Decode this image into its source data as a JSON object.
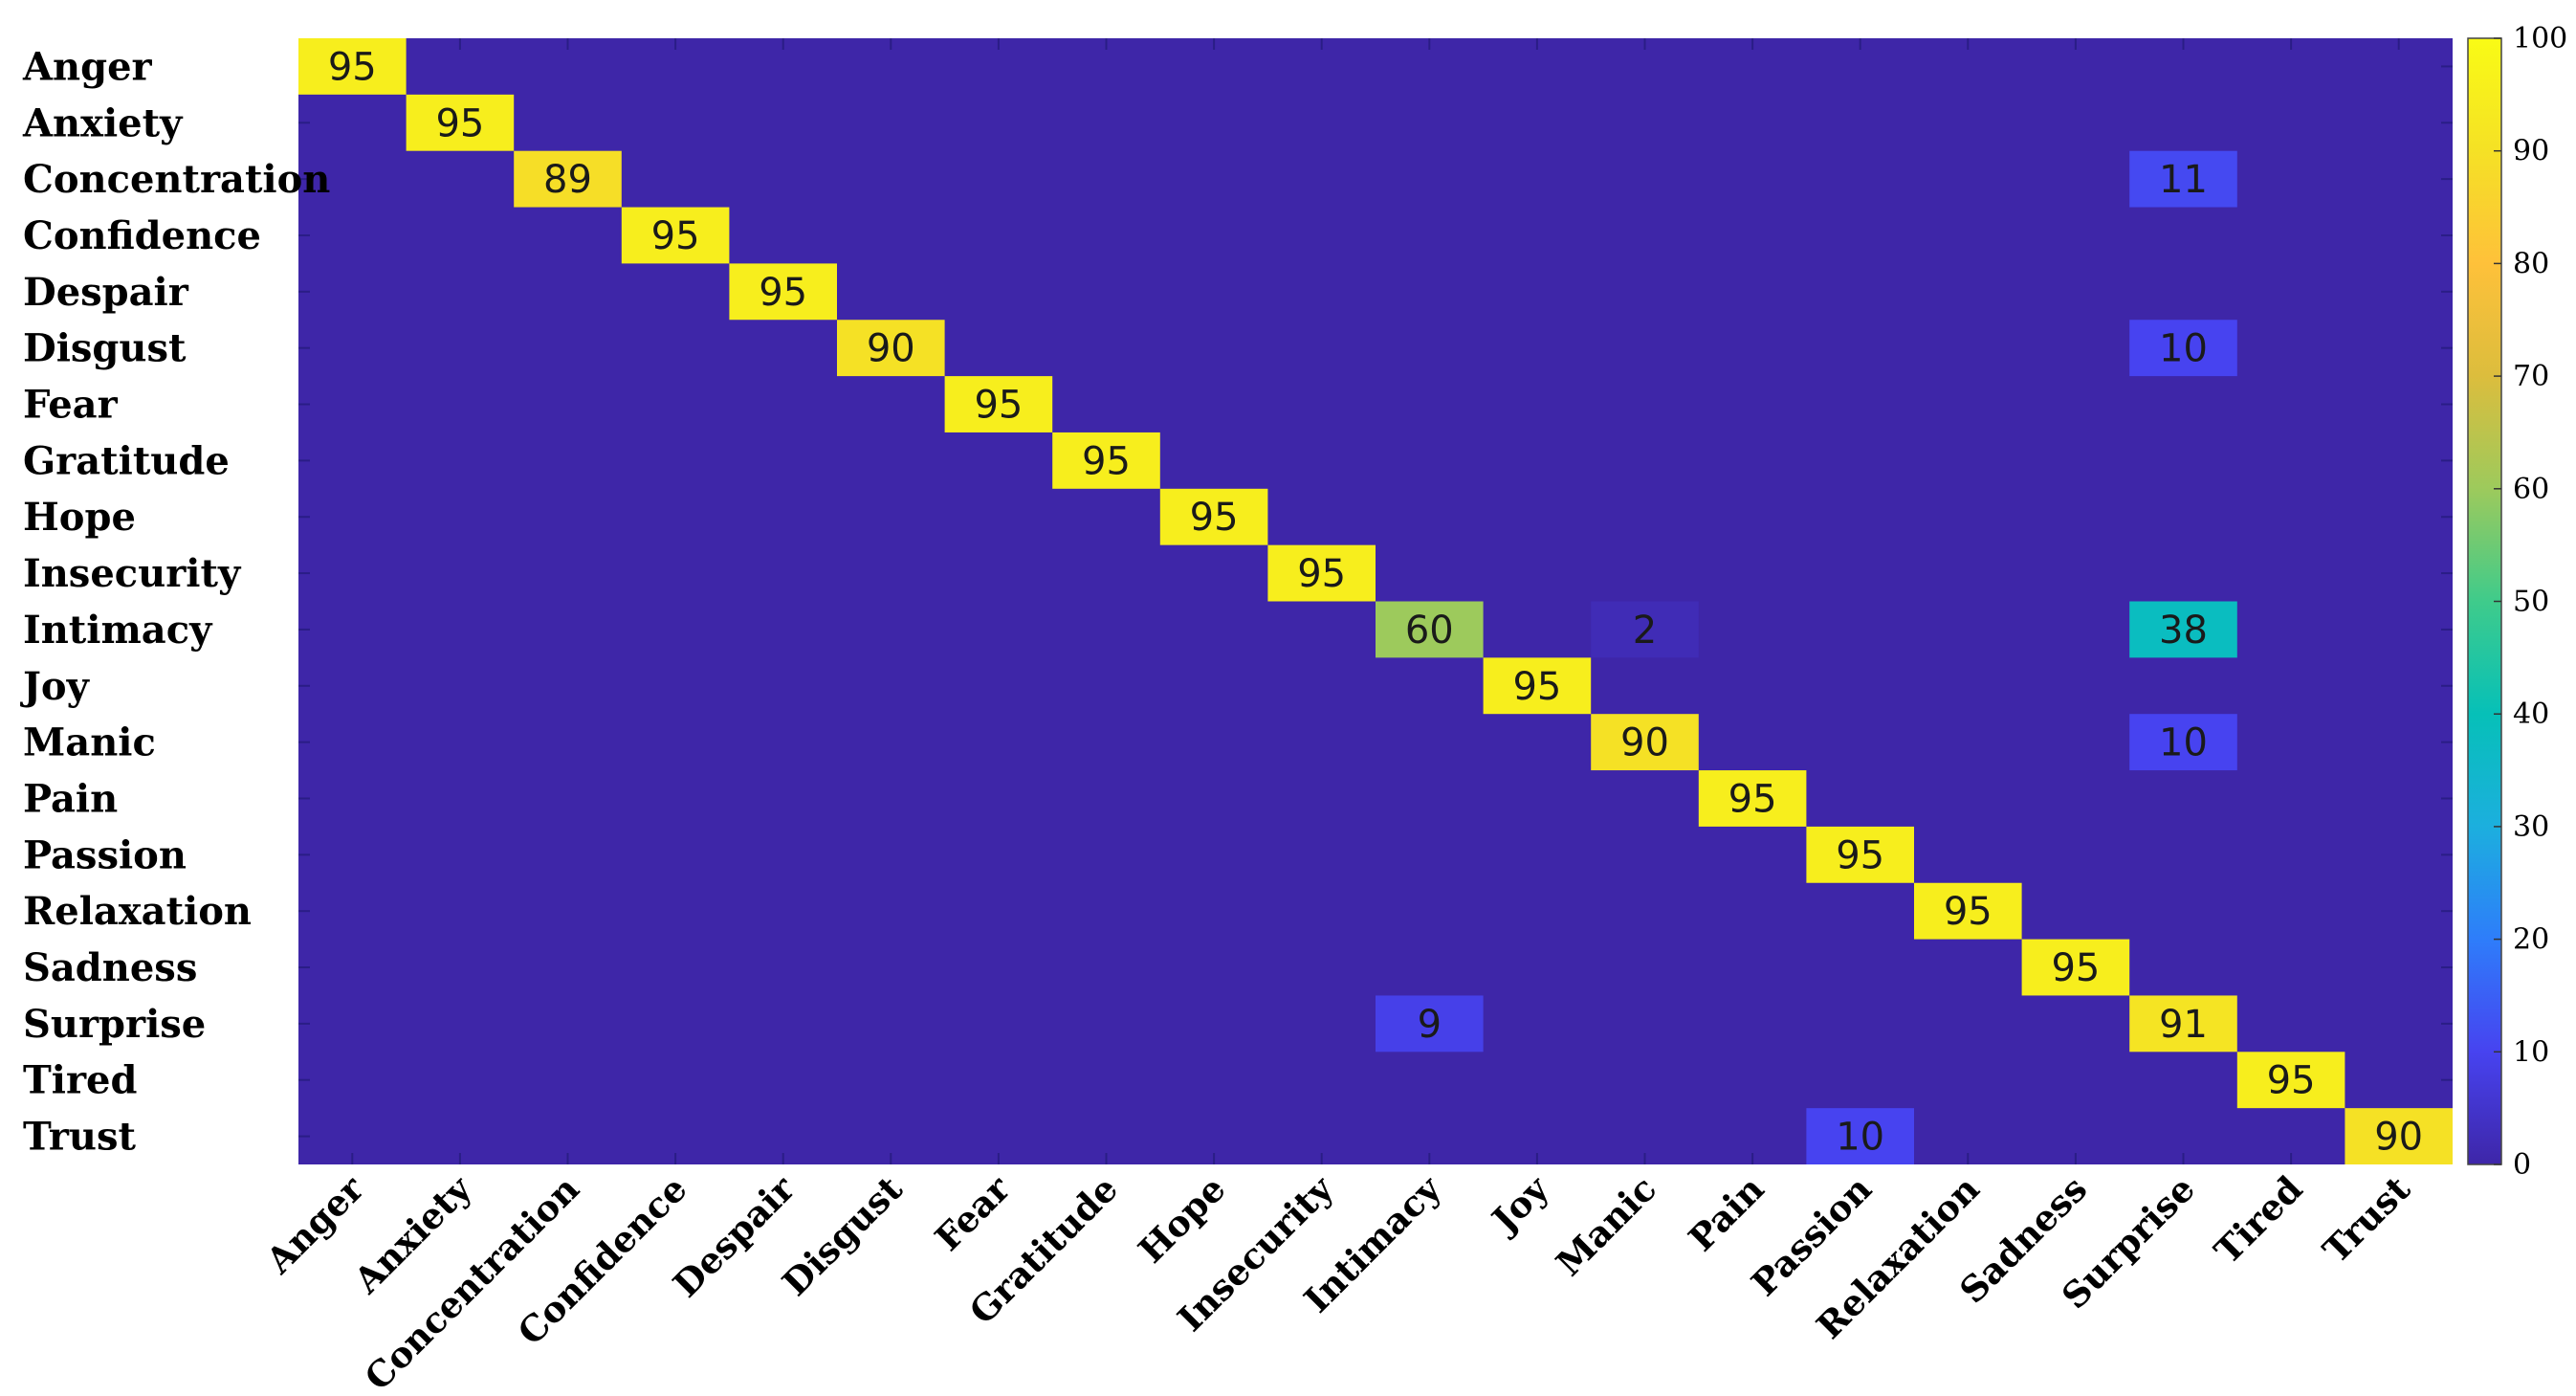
{
  "chart_data": {
    "type": "heatmap",
    "title": "",
    "xlabel": "",
    "ylabel": "",
    "rows": [
      "Anger",
      "Anxiety",
      "Concentration",
      "Confidence",
      "Despair",
      "Disgust",
      "Fear",
      "Gratitude",
      "Hope",
      "Insecurity",
      "Intimacy",
      "Joy",
      "Manic",
      "Pain",
      "Passion",
      "Relaxation",
      "Sadness",
      "Surprise",
      "Tired",
      "Trust"
    ],
    "columns": [
      "Anger",
      "Anxiety",
      "Concentration",
      "Confidence",
      "Despair",
      "Disgust",
      "Fear",
      "Gratitude",
      "Hope",
      "Insecurity",
      "Intimacy",
      "Joy",
      "Manic",
      "Pain",
      "Passion",
      "Relaxation",
      "Sadness",
      "Surprise",
      "Tired",
      "Trust"
    ],
    "cells": [
      {
        "row": "Anger",
        "col": "Anger",
        "value": 95
      },
      {
        "row": "Anxiety",
        "col": "Anxiety",
        "value": 95
      },
      {
        "row": "Concentration",
        "col": "Concentration",
        "value": 89
      },
      {
        "row": "Concentration",
        "col": "Surprise",
        "value": 11
      },
      {
        "row": "Confidence",
        "col": "Confidence",
        "value": 95
      },
      {
        "row": "Despair",
        "col": "Despair",
        "value": 95
      },
      {
        "row": "Disgust",
        "col": "Disgust",
        "value": 90
      },
      {
        "row": "Disgust",
        "col": "Surprise",
        "value": 10
      },
      {
        "row": "Fear",
        "col": "Fear",
        "value": 95
      },
      {
        "row": "Gratitude",
        "col": "Gratitude",
        "value": 95
      },
      {
        "row": "Hope",
        "col": "Hope",
        "value": 95
      },
      {
        "row": "Insecurity",
        "col": "Insecurity",
        "value": 95
      },
      {
        "row": "Intimacy",
        "col": "Intimacy",
        "value": 60
      },
      {
        "row": "Intimacy",
        "col": "Manic",
        "value": 2
      },
      {
        "row": "Intimacy",
        "col": "Surprise",
        "value": 38
      },
      {
        "row": "Joy",
        "col": "Joy",
        "value": 95
      },
      {
        "row": "Manic",
        "col": "Manic",
        "value": 90
      },
      {
        "row": "Manic",
        "col": "Surprise",
        "value": 10
      },
      {
        "row": "Pain",
        "col": "Pain",
        "value": 95
      },
      {
        "row": "Passion",
        "col": "Passion",
        "value": 95
      },
      {
        "row": "Relaxation",
        "col": "Relaxation",
        "value": 95
      },
      {
        "row": "Sadness",
        "col": "Sadness",
        "value": 95
      },
      {
        "row": "Surprise",
        "col": "Intimacy",
        "value": 9
      },
      {
        "row": "Surprise",
        "col": "Surprise",
        "value": 91
      },
      {
        "row": "Tired",
        "col": "Tired",
        "value": 95
      },
      {
        "row": "Trust",
        "col": "Passion",
        "value": 10
      },
      {
        "row": "Trust",
        "col": "Trust",
        "value": 90
      }
    ],
    "value_range": [
      0,
      100
    ],
    "colorbar": {
      "ticks": [
        0,
        10,
        20,
        30,
        40,
        50,
        60,
        70,
        80,
        90,
        100
      ],
      "colormap": "parula",
      "stops": [
        "#3e26a8",
        "#4743f0",
        "#2e7dfa",
        "#1cafde",
        "#06c0b8",
        "#3fcb8b",
        "#9dca5c",
        "#dcbd3d",
        "#fec13a",
        "#f5e125",
        "#f9fb15"
      ]
    },
    "grid": false,
    "legend": "colorbar-right"
  }
}
